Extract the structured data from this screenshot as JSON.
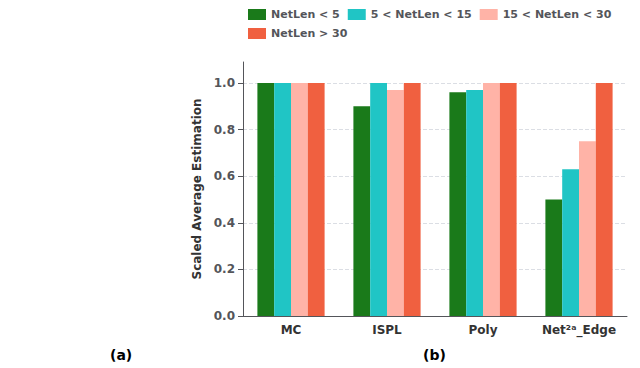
{
  "chart_data": {
    "type": "bar",
    "categories": [
      "MC",
      "ISPL",
      "Poly",
      "Net²ᵃ_Edge"
    ],
    "series": [
      {
        "name": "NetLen < 5",
        "color": "#1a7a1a",
        "values": [
          1.0,
          0.9,
          0.96,
          0.5
        ]
      },
      {
        "name": "5 < NetLen < 15",
        "color": "#20c5c5",
        "values": [
          1.0,
          1.0,
          0.97,
          0.63
        ]
      },
      {
        "name": "15 < NetLen < 30",
        "color": "#ffb3a7",
        "values": [
          1.0,
          0.97,
          1.0,
          0.75
        ]
      },
      {
        "name": "NetLen > 30",
        "color": "#f06040",
        "values": [
          1.0,
          1.0,
          1.0,
          1.0
        ]
      }
    ],
    "ylabel": "Scaled Average Estimation",
    "ylim": [
      0.0,
      1.09
    ],
    "yticks": [
      {
        "value": 0.0,
        "label": "0.0"
      },
      0.2,
      0.4,
      0.6,
      0.8,
      {
        "value": 1.0,
        "label": "1.0"
      }
    ],
    "grid": true,
    "legend": "upper left",
    "annotations": [
      "(a)",
      "(b)"
    ]
  }
}
